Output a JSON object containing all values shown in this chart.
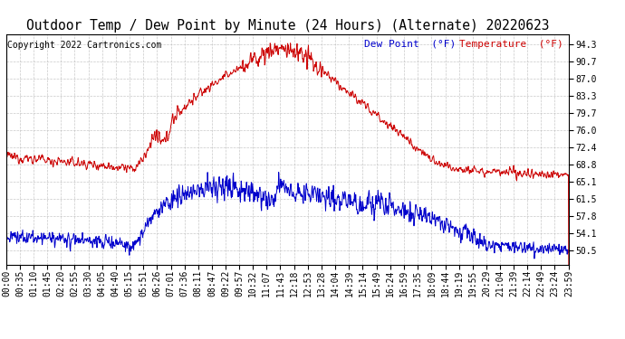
{
  "title": "Outdoor Temp / Dew Point by Minute (24 Hours) (Alternate) 20220623",
  "copyright": "Copyright 2022 Cartronics.com",
  "legend_dew": "Dew Point  (°F)",
  "legend_temp": "Temperature  (°F)",
  "yticks": [
    50.5,
    54.1,
    57.8,
    61.5,
    65.1,
    68.8,
    72.4,
    76.0,
    79.7,
    83.3,
    87.0,
    90.7,
    94.3
  ],
  "ymin": 47.5,
  "ymax": 96.5,
  "temp_color": "#cc0000",
  "dew_color": "#0000cc",
  "background_color": "#ffffff",
  "grid_color": "#bbbbbb",
  "title_fontsize": 10.5,
  "copyright_fontsize": 7,
  "legend_fontsize": 8,
  "tick_fontsize": 7,
  "xtick_labels": [
    "00:00",
    "00:35",
    "01:10",
    "01:45",
    "02:20",
    "02:55",
    "03:30",
    "04:05",
    "04:40",
    "05:15",
    "05:51",
    "06:26",
    "07:01",
    "07:36",
    "08:11",
    "08:47",
    "09:22",
    "09:57",
    "10:32",
    "11:07",
    "11:43",
    "12:18",
    "12:53",
    "13:28",
    "14:04",
    "14:39",
    "15:14",
    "15:49",
    "16:24",
    "16:59",
    "17:35",
    "18:09",
    "18:44",
    "19:19",
    "19:55",
    "20:29",
    "21:04",
    "21:39",
    "22:14",
    "22:49",
    "23:24",
    "23:59"
  ]
}
